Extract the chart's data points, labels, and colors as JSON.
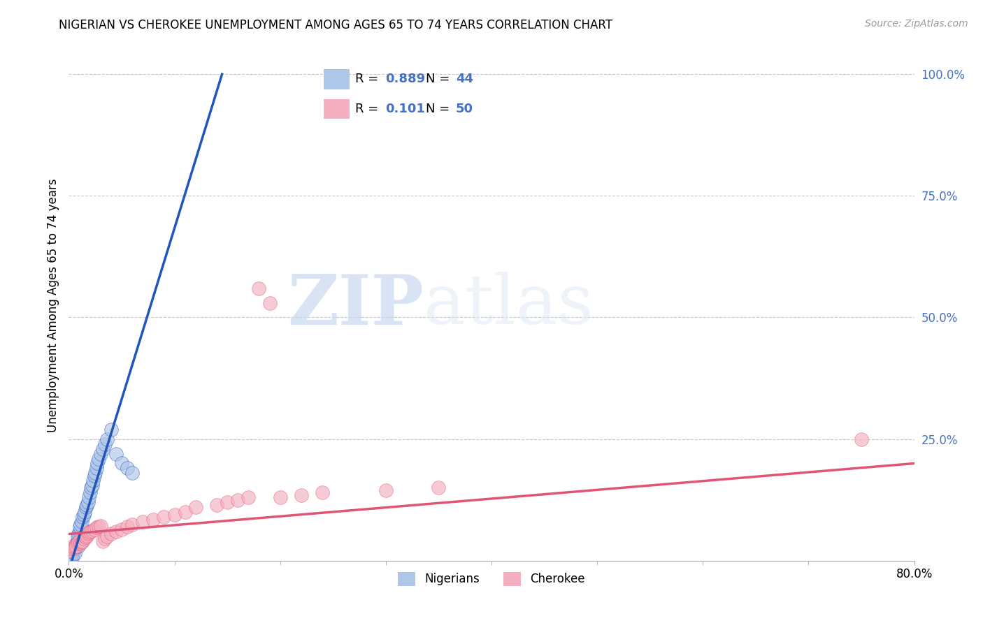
{
  "title": "NIGERIAN VS CHEROKEE UNEMPLOYMENT AMONG AGES 65 TO 74 YEARS CORRELATION CHART",
  "source": "Source: ZipAtlas.com",
  "ylabel": "Unemployment Among Ages 65 to 74 years",
  "y_tick_vals": [
    0.0,
    0.25,
    0.5,
    0.75,
    1.0
  ],
  "y_tick_labels": [
    "",
    "25.0%",
    "50.0%",
    "75.0%",
    "100.0%"
  ],
  "x_range": [
    0.0,
    0.8
  ],
  "y_range": [
    0.0,
    1.05
  ],
  "nigerian_R": 0.889,
  "nigerian_N": 44,
  "cherokee_R": 0.101,
  "cherokee_N": 50,
  "nigerian_color": "#aec6e8",
  "cherokee_color": "#f4afc0",
  "nigerian_line_color": "#2255bb",
  "cherokee_line_color": "#e05575",
  "legend_text_color": "#4472c4",
  "watermark_zip": "ZIP",
  "watermark_atlas": "atlas",
  "background_color": "#ffffff",
  "grid_color": "#c8c8c8",
  "nigerian_x": [
    0.0,
    0.002,
    0.003,
    0.004,
    0.005,
    0.005,
    0.006,
    0.007,
    0.008,
    0.008,
    0.009,
    0.01,
    0.01,
    0.011,
    0.012,
    0.013,
    0.014,
    0.015,
    0.016,
    0.017,
    0.018,
    0.019,
    0.02,
    0.021,
    0.022,
    0.023,
    0.024,
    0.025,
    0.026,
    0.027,
    0.028,
    0.03,
    0.032,
    0.034,
    0.036,
    0.04,
    0.045,
    0.05,
    0.055,
    0.06,
    0.001,
    0.003,
    0.006,
    0.009
  ],
  "nigerian_y": [
    0.005,
    0.008,
    0.01,
    0.015,
    0.02,
    0.025,
    0.03,
    0.035,
    0.04,
    0.05,
    0.055,
    0.06,
    0.07,
    0.075,
    0.08,
    0.09,
    0.095,
    0.1,
    0.11,
    0.115,
    0.12,
    0.13,
    0.14,
    0.15,
    0.155,
    0.165,
    0.175,
    0.18,
    0.19,
    0.2,
    0.21,
    0.22,
    0.23,
    0.24,
    0.25,
    0.27,
    0.22,
    0.2,
    0.19,
    0.18,
    0.003,
    0.006,
    0.015,
    0.03
  ],
  "cherokee_x": [
    0.0,
    0.002,
    0.004,
    0.005,
    0.006,
    0.007,
    0.008,
    0.009,
    0.01,
    0.011,
    0.012,
    0.013,
    0.014,
    0.015,
    0.016,
    0.017,
    0.018,
    0.019,
    0.02,
    0.022,
    0.024,
    0.026,
    0.028,
    0.03,
    0.032,
    0.034,
    0.036,
    0.04,
    0.045,
    0.05,
    0.055,
    0.06,
    0.07,
    0.08,
    0.09,
    0.1,
    0.11,
    0.12,
    0.14,
    0.15,
    0.16,
    0.17,
    0.18,
    0.19,
    0.2,
    0.22,
    0.24,
    0.3,
    0.35,
    0.75
  ],
  "cherokee_y": [
    0.02,
    0.025,
    0.03,
    0.025,
    0.028,
    0.03,
    0.035,
    0.038,
    0.04,
    0.035,
    0.038,
    0.04,
    0.045,
    0.05,
    0.048,
    0.052,
    0.055,
    0.058,
    0.06,
    0.062,
    0.065,
    0.068,
    0.07,
    0.072,
    0.04,
    0.045,
    0.05,
    0.055,
    0.06,
    0.065,
    0.07,
    0.075,
    0.08,
    0.085,
    0.09,
    0.095,
    0.1,
    0.11,
    0.115,
    0.12,
    0.125,
    0.13,
    0.56,
    0.53,
    0.13,
    0.135,
    0.14,
    0.145,
    0.15,
    0.25
  ],
  "nig_line_x0": 0.0,
  "nig_line_y0": -0.02,
  "nig_line_x1": 0.145,
  "nig_line_y1": 1.0,
  "che_line_x0": 0.0,
  "che_line_y0": 0.055,
  "che_line_x1": 0.8,
  "che_line_y1": 0.2
}
